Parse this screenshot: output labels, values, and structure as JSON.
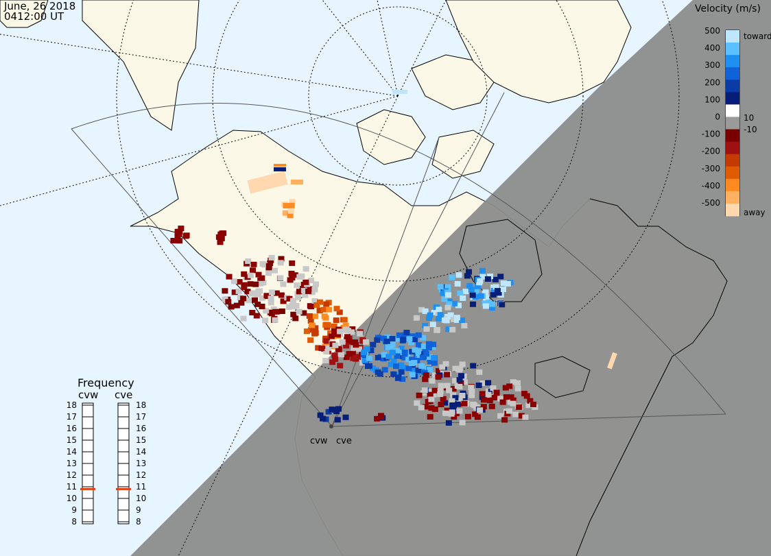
{
  "header": {
    "date": "June, 26 2018",
    "time": "0412:00 UT"
  },
  "colors": {
    "ocean": "#e6f5ff",
    "land": "#fbf8e8",
    "night": "#8c8c8c",
    "coast": "#000000"
  },
  "velocity_scale": {
    "title": "Velocity (m/s)",
    "toward_label": "toward",
    "away_label": "away",
    "ticks": [
      "500",
      "400",
      "300",
      "200",
      "100",
      "0",
      "-100",
      "-200",
      "-300",
      "-400",
      "-500"
    ],
    "inner_labels": [
      "10",
      "-10"
    ],
    "colors": [
      "#bfe6ff",
      "#5cc0ff",
      "#1d8ff0",
      "#0f62d8",
      "#0a3ca8",
      "#061e78",
      "#ffffff",
      "#9a9a9a",
      "#7a0000",
      "#a01010",
      "#c43a00",
      "#e05a00",
      "#ff8a20",
      "#ffb060",
      "#ffd8b0"
    ]
  },
  "frequency": {
    "title": "Frequency",
    "radars": [
      "cvw",
      "cve"
    ],
    "ticks": [
      "18",
      "17",
      "16",
      "15",
      "14",
      "13",
      "12",
      "11",
      "10",
      "9",
      "8"
    ],
    "values_mhz": [
      10.8,
      10.8
    ],
    "marker_color": "#e04010"
  },
  "radar_sites": [
    {
      "id": "cvw",
      "label": "cvw"
    },
    {
      "id": "cve",
      "label": "cve"
    }
  ]
}
